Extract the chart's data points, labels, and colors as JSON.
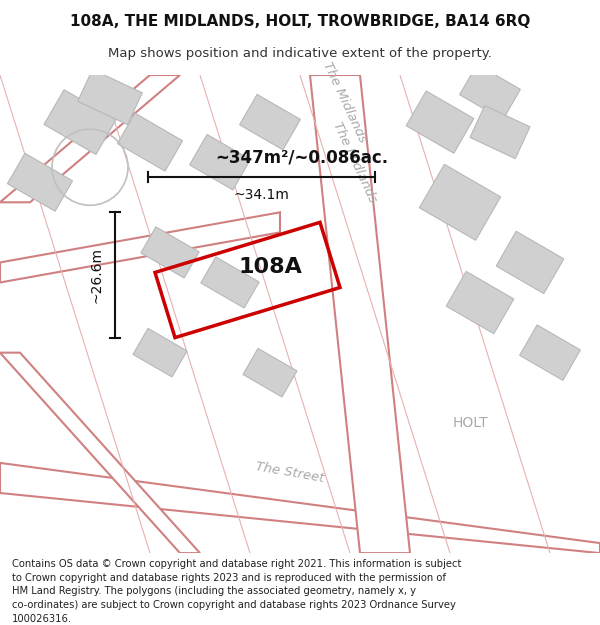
{
  "title_line1": "108A, THE MIDLANDS, HOLT, TROWBRIDGE, BA14 6RQ",
  "title_line2": "Map shows position and indicative extent of the property.",
  "footer_text": "Contains OS data © Crown copyright and database right 2021. This information is subject to Crown copyright and database rights 2023 and is reproduced with the permission of HM Land Registry. The polygons (including the associated geometry, namely x, y co-ordinates) are subject to Crown copyright and database rights 2023 Ordnance Survey 100026316.",
  "area_label": "~347m²/~0.086ac.",
  "width_label": "~34.1m",
  "height_label": "~26.6m",
  "property_label": "108A",
  "street_label1": "The Midlands",
  "street_label2": "The Midlands",
  "street_label3": "The Street",
  "place_label": "HOLT",
  "bg_color": "#f5f5f5",
  "map_bg": "#f0eeee",
  "road_color": "#ffffff",
  "building_color": "#d8d8d8",
  "boundary_color": "#e8a0a0",
  "highlight_color": "#cc0000",
  "text_color": "#555555",
  "dim_color": "#000000",
  "title_fontsize": 11,
  "subtitle_fontsize": 9.5,
  "footer_fontsize": 7.5
}
